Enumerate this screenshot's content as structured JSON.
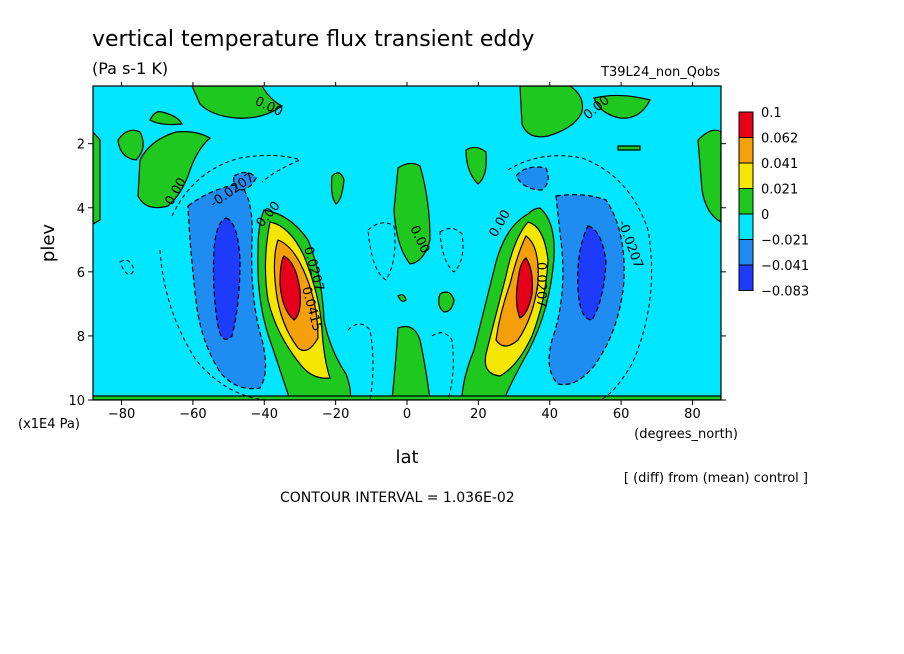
{
  "chart_data": {
    "type": "heatmap",
    "title": "vertical temperature flux transient eddy",
    "units": "(Pa s-1 K)",
    "run_label": "T39L24_non_Qobs",
    "xlabel": "lat",
    "x_unit_label": "(degrees_north)",
    "ylabel": "plev",
    "y_unit_label": "(x1E4 Pa)",
    "x_ticks": [
      "-80",
      "-60",
      "-40",
      "-20",
      "0",
      "20",
      "40",
      "60",
      "80"
    ],
    "y_ticks": [
      "2",
      "4",
      "6",
      "8",
      "10"
    ],
    "xlim": [
      -88,
      88
    ],
    "ylim": [
      10,
      0.2
    ],
    "colorbar": {
      "labels": [
        "0.1",
        "0.062",
        "0.041",
        "0.021",
        "0",
        "-0.021",
        "-0.041",
        "-0.083"
      ],
      "colors": [
        "#e6001a",
        "#f5a00a",
        "#f5e600",
        "#1ec81e",
        "#00e6ff",
        "#1e8cf0",
        "#1e3cff"
      ]
    },
    "contour_labels": [
      "0.00",
      "0.00",
      "0.00",
      "0.00",
      "0.00",
      "-0.0207",
      "-0.0207",
      "0.0207",
      "0.0207",
      "0.0415"
    ],
    "note": "[ (diff) from (mean) control ]",
    "contour_interval": "CONTOUR INTERVAL = 1.036E-02",
    "features": [
      {
        "name": "SH positive max",
        "lat": -33,
        "plev": 6.6,
        "value": 0.1
      },
      {
        "name": "NH positive max",
        "lat": 33,
        "plev": 6.6,
        "value": 0.1
      },
      {
        "name": "SH negative min",
        "lat": -50,
        "plev": 6.0,
        "value": -0.083
      },
      {
        "name": "NH negative min",
        "lat": 52,
        "plev": 6.0,
        "value": -0.083
      }
    ]
  }
}
